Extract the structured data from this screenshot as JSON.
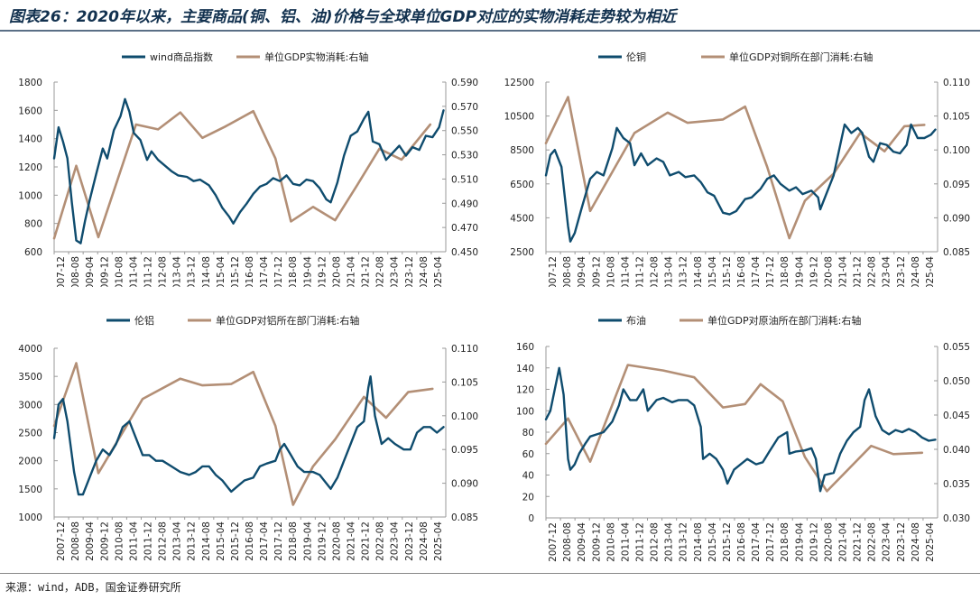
{
  "title": "图表26：2020年以来，主要商品(铜、铝、油)价格与全球单位GDP对应的实物消耗走势较为相近",
  "source": "来源：wind，ADB，国金证券研究所",
  "colors": {
    "left_series": "#0f4c6e",
    "right_series": "#b38f76",
    "axis": "#999999"
  },
  "chart_data": [
    {
      "type": "line",
      "x_ticks": [
        "2007-12",
        "2008-08",
        "2009-04",
        "2009-12",
        "2010-08",
        "2011-04",
        "2011-12",
        "2012-08",
        "2013-04",
        "2013-12",
        "2014-08",
        "2015-04",
        "2015-12",
        "2016-08",
        "2017-04",
        "2017-12",
        "2018-08",
        "2019-04",
        "2019-12",
        "2020-08",
        "2021-04",
        "2021-12",
        "2022-08",
        "2023-04",
        "2023-12",
        "2024-08",
        "2025-04"
      ],
      "y_left": {
        "range": [
          600,
          1800
        ],
        "ticks": [
          "600",
          "800",
          "1000",
          "1200",
          "1400",
          "1600",
          "1800"
        ]
      },
      "y_right": {
        "range": [
          0.45,
          0.59
        ],
        "ticks": [
          "0.450",
          "0.470",
          "0.490",
          "0.510",
          "0.530",
          "0.550",
          "0.570",
          "0.590"
        ]
      },
      "series": [
        {
          "name": "wind商品指数",
          "axis": "left",
          "x": [
            2007.9,
            2008.1,
            2008.3,
            2008.5,
            2008.7,
            2008.9,
            2009.1,
            2009.3,
            2009.5,
            2009.8,
            2010.1,
            2010.3,
            2010.6,
            2010.9,
            2011.1,
            2011.3,
            2011.5,
            2011.8,
            2012.1,
            2012.3,
            2012.6,
            2012.9,
            2013.2,
            2013.5,
            2013.9,
            2014.2,
            2014.5,
            2014.9,
            2015.2,
            2015.5,
            2015.8,
            2016.0,
            2016.3,
            2016.6,
            2016.9,
            2017.2,
            2017.5,
            2017.8,
            2018.1,
            2018.4,
            2018.7,
            2019.0,
            2019.3,
            2019.6,
            2019.9,
            2020.2,
            2020.4,
            2020.7,
            2021.0,
            2021.3,
            2021.6,
            2021.9,
            2022.1,
            2022.3,
            2022.6,
            2022.9,
            2023.2,
            2023.5,
            2023.8,
            2024.1,
            2024.4,
            2024.7,
            2025.0,
            2025.3,
            2025.5
          ],
          "values": [
            1260,
            1480,
            1380,
            1260,
            950,
            680,
            660,
            820,
            960,
            1150,
            1330,
            1260,
            1460,
            1560,
            1680,
            1590,
            1440,
            1390,
            1250,
            1310,
            1250,
            1210,
            1170,
            1140,
            1130,
            1100,
            1110,
            1070,
            1000,
            910,
            850,
            800,
            880,
            940,
            1010,
            1060,
            1080,
            1120,
            1100,
            1140,
            1080,
            1070,
            1110,
            1100,
            1050,
            970,
            950,
            1090,
            1280,
            1420,
            1450,
            1540,
            1590,
            1380,
            1360,
            1250,
            1300,
            1350,
            1280,
            1340,
            1320,
            1420,
            1410,
            1480,
            1600
          ]
        },
        {
          "name": "单位GDP实物消耗:右轴",
          "axis": "right",
          "x": [
            2007.9,
            2008.9,
            2009.9,
            2011.6,
            2012.6,
            2013.6,
            2014.6,
            2015.6,
            2016.9,
            2017.9,
            2018.6,
            2019.6,
            2020.6,
            2021.6,
            2022.6,
            2023.6,
            2024.9
          ],
          "values": [
            0.461,
            0.521,
            0.462,
            0.555,
            0.551,
            0.565,
            0.544,
            0.553,
            0.566,
            0.527,
            0.475,
            0.487,
            0.476,
            0.505,
            0.535,
            0.526,
            0.555
          ]
        }
      ]
    },
    {
      "type": "line",
      "x_ticks": [
        "2007-12",
        "2008-08",
        "2009-04",
        "2009-12",
        "2010-08",
        "2011-04",
        "2011-12",
        "2012-08",
        "2013-04",
        "2013-12",
        "2014-08",
        "2015-04",
        "2015-12",
        "2016-08",
        "2017-04",
        "2017-12",
        "2018-08",
        "2019-04",
        "2019-12",
        "2020-08",
        "2021-04",
        "2021-12",
        "2022-08",
        "2023-04",
        "2023-12",
        "2024-08",
        "2025-04"
      ],
      "y_left": {
        "range": [
          2500,
          12500
        ],
        "ticks": [
          "2500",
          "4500",
          "6500",
          "8500",
          "10500",
          "12500"
        ]
      },
      "y_right": {
        "range": [
          0.085,
          0.11
        ],
        "ticks": [
          "0.085",
          "0.090",
          "0.095",
          "0.100",
          "0.105",
          "0.110"
        ]
      },
      "series": [
        {
          "name": "伦铜",
          "axis": "left",
          "x": [
            2007.9,
            2008.1,
            2008.3,
            2008.6,
            2008.9,
            2009.0,
            2009.2,
            2009.5,
            2009.9,
            2010.2,
            2010.5,
            2010.9,
            2011.1,
            2011.4,
            2011.7,
            2011.9,
            2012.2,
            2012.5,
            2012.9,
            2013.2,
            2013.5,
            2013.9,
            2014.2,
            2014.6,
            2014.9,
            2015.2,
            2015.5,
            2015.9,
            2016.2,
            2016.5,
            2016.9,
            2017.2,
            2017.6,
            2017.9,
            2018.2,
            2018.5,
            2018.9,
            2019.2,
            2019.5,
            2019.9,
            2020.2,
            2020.3,
            2020.6,
            2020.9,
            2021.2,
            2021.4,
            2021.7,
            2022.0,
            2022.2,
            2022.5,
            2022.7,
            2023.0,
            2023.3,
            2023.6,
            2023.9,
            2024.2,
            2024.4,
            2024.7,
            2025.0,
            2025.3,
            2025.5
          ],
          "values": [
            7000,
            8200,
            8500,
            7500,
            4000,
            3100,
            3600,
            5000,
            6800,
            7200,
            7000,
            8600,
            9800,
            9200,
            8900,
            7600,
            8300,
            7600,
            8000,
            7800,
            7000,
            7200,
            6900,
            7000,
            6600,
            6000,
            5800,
            4800,
            4700,
            4900,
            5600,
            5700,
            6200,
            6800,
            7000,
            6500,
            6100,
            6300,
            5900,
            6100,
            5700,
            5000,
            6000,
            7000,
            8800,
            10000,
            9500,
            9800,
            9500,
            8100,
            7800,
            8900,
            8800,
            8400,
            8300,
            8800,
            10000,
            9200,
            9200,
            9400,
            9700
          ]
        },
        {
          "name": "单位GDP对铜所在部门消耗:右轴",
          "axis": "right",
          "x": [
            2007.9,
            2008.9,
            2009.9,
            2011.9,
            2013.4,
            2014.3,
            2015.9,
            2016.9,
            2017.9,
            2018.9,
            2019.6,
            2020.9,
            2022.1,
            2023.2,
            2024.1,
            2025.0
          ],
          "values": [
            0.101,
            0.1078,
            0.091,
            0.1025,
            0.1055,
            0.104,
            0.1045,
            0.1064,
            0.0975,
            0.087,
            0.0925,
            0.0965,
            0.1025,
            0.0998,
            0.1035,
            0.1037
          ]
        }
      ]
    },
    {
      "type": "line",
      "x_ticks": [
        "2007-12",
        "2008-08",
        "2009-04",
        "2009-12",
        "2010-08",
        "2011-04",
        "2011-12",
        "2012-08",
        "2013-04",
        "2013-12",
        "2014-08",
        "2015-04",
        "2015-12",
        "2016-08",
        "2017-04",
        "2017-12",
        "2018-08",
        "2019-04",
        "2019-12",
        "2020-08",
        "2021-04",
        "2021-12",
        "2022-08",
        "2023-04",
        "2023-12",
        "2024-08",
        "2025-04"
      ],
      "y_left": {
        "range": [
          1000,
          4000
        ],
        "ticks": [
          "1000",
          "1500",
          "2000",
          "2500",
          "3000",
          "3500",
          "4000"
        ]
      },
      "y_right": {
        "range": [
          0.085,
          0.11
        ],
        "ticks": [
          "0.085",
          "0.090",
          "0.095",
          "0.100",
          "0.105",
          "0.110"
        ]
      },
      "series": [
        {
          "name": "伦铝",
          "axis": "left",
          "x": [
            2007.9,
            2008.1,
            2008.3,
            2008.5,
            2008.8,
            2009.0,
            2009.2,
            2009.5,
            2009.8,
            2010.1,
            2010.4,
            2010.7,
            2011.0,
            2011.3,
            2011.6,
            2011.9,
            2012.2,
            2012.5,
            2012.8,
            2013.2,
            2013.6,
            2014.0,
            2014.3,
            2014.6,
            2014.9,
            2015.2,
            2015.5,
            2015.9,
            2016.2,
            2016.5,
            2016.9,
            2017.2,
            2017.5,
            2017.9,
            2018.1,
            2018.3,
            2018.6,
            2018.9,
            2019.2,
            2019.6,
            2019.9,
            2020.2,
            2020.4,
            2020.7,
            2021.0,
            2021.3,
            2021.6,
            2021.9,
            2022.1,
            2022.2,
            2022.4,
            2022.7,
            2023.0,
            2023.3,
            2023.7,
            2024.0,
            2024.3,
            2024.6,
            2024.9,
            2025.2,
            2025.5
          ],
          "values": [
            2400,
            3000,
            3100,
            2700,
            1800,
            1400,
            1400,
            1700,
            2000,
            2200,
            2100,
            2300,
            2600,
            2700,
            2400,
            2100,
            2100,
            2000,
            2000,
            1900,
            1800,
            1750,
            1800,
            1900,
            1900,
            1750,
            1650,
            1450,
            1550,
            1650,
            1700,
            1900,
            1950,
            2000,
            2200,
            2300,
            2100,
            1900,
            1800,
            1800,
            1750,
            1600,
            1500,
            1700,
            2000,
            2300,
            2600,
            2700,
            3300,
            3500,
            2800,
            2300,
            2400,
            2300,
            2200,
            2200,
            2500,
            2600,
            2600,
            2500,
            2600
          ]
        },
        {
          "name": "单位GDP对铝所在部门消耗:右轴",
          "axis": "right",
          "x": [
            2007.9,
            2008.9,
            2009.9,
            2011.9,
            2013.6,
            2014.6,
            2015.9,
            2016.9,
            2017.9,
            2018.7,
            2019.6,
            2020.6,
            2021.9,
            2022.9,
            2023.9,
            2025.0
          ],
          "values": [
            0.0985,
            0.1078,
            0.0915,
            0.1025,
            0.1055,
            0.1045,
            0.1047,
            0.1065,
            0.0985,
            0.0868,
            0.0925,
            0.0965,
            0.1028,
            0.0997,
            0.1035,
            0.104
          ]
        }
      ]
    },
    {
      "type": "line",
      "x_ticks": [
        "2007-12",
        "2008-08",
        "2009-04",
        "2009-12",
        "2010-08",
        "2011-04",
        "2011-12",
        "2012-08",
        "2013-04",
        "2013-12",
        "2014-08",
        "2015-04",
        "2015-12",
        "2016-08",
        "2017-04",
        "2017-12",
        "2018-08",
        "2019-04",
        "2019-12",
        "2020-08",
        "2021-04",
        "2021-12",
        "2022-08",
        "2023-04",
        "2023-12",
        "2024-08",
        "2025-04"
      ],
      "y_left": {
        "range": [
          0,
          160
        ],
        "ticks": [
          "0",
          "20",
          "40",
          "60",
          "80",
          "100",
          "120",
          "140",
          "160"
        ]
      },
      "y_right": {
        "range": [
          0.03,
          0.055
        ],
        "ticks": [
          "0.030",
          "0.035",
          "0.040",
          "0.045",
          "0.050",
          "0.055"
        ]
      },
      "series": [
        {
          "name": "布油",
          "axis": "left",
          "x": [
            2007.9,
            2008.1,
            2008.3,
            2008.5,
            2008.7,
            2008.9,
            2009.0,
            2009.2,
            2009.4,
            2009.7,
            2009.9,
            2010.2,
            2010.5,
            2010.9,
            2011.2,
            2011.4,
            2011.7,
            2012.0,
            2012.3,
            2012.5,
            2012.9,
            2013.2,
            2013.6,
            2013.9,
            2014.3,
            2014.6,
            2014.9,
            2015.0,
            2015.3,
            2015.6,
            2015.9,
            2016.1,
            2016.4,
            2016.7,
            2017.0,
            2017.4,
            2017.7,
            2018.0,
            2018.4,
            2018.8,
            2018.9,
            2019.2,
            2019.6,
            2019.9,
            2020.1,
            2020.3,
            2020.5,
            2020.9,
            2021.2,
            2021.5,
            2021.8,
            2022.1,
            2022.3,
            2022.5,
            2022.8,
            2023.1,
            2023.4,
            2023.7,
            2024.0,
            2024.3,
            2024.6,
            2024.9,
            2025.2,
            2025.5
          ],
          "values": [
            92,
            100,
            120,
            140,
            115,
            55,
            45,
            50,
            60,
            70,
            76,
            78,
            80,
            90,
            105,
            120,
            110,
            110,
            120,
            100,
            110,
            112,
            108,
            110,
            110,
            105,
            85,
            55,
            60,
            55,
            45,
            32,
            45,
            50,
            55,
            50,
            52,
            62,
            75,
            80,
            60,
            62,
            63,
            65,
            55,
            25,
            40,
            42,
            60,
            72,
            80,
            85,
            110,
            120,
            95,
            82,
            78,
            82,
            80,
            83,
            80,
            75,
            72,
            73
          ]
        },
        {
          "name": "单位GDP对原油所在部门消耗:右轴",
          "axis": "right",
          "x": [
            2007.9,
            2008.9,
            2009.9,
            2011.6,
            2013.2,
            2014.6,
            2015.9,
            2016.9,
            2017.6,
            2018.6,
            2019.6,
            2020.6,
            2022.6,
            2023.6,
            2024.9
          ],
          "values": [
            0.0408,
            0.0445,
            0.0382,
            0.0523,
            0.0515,
            0.0505,
            0.0461,
            0.0466,
            0.0495,
            0.047,
            0.0389,
            0.0339,
            0.0405,
            0.0393,
            0.0395
          ]
        }
      ]
    }
  ]
}
